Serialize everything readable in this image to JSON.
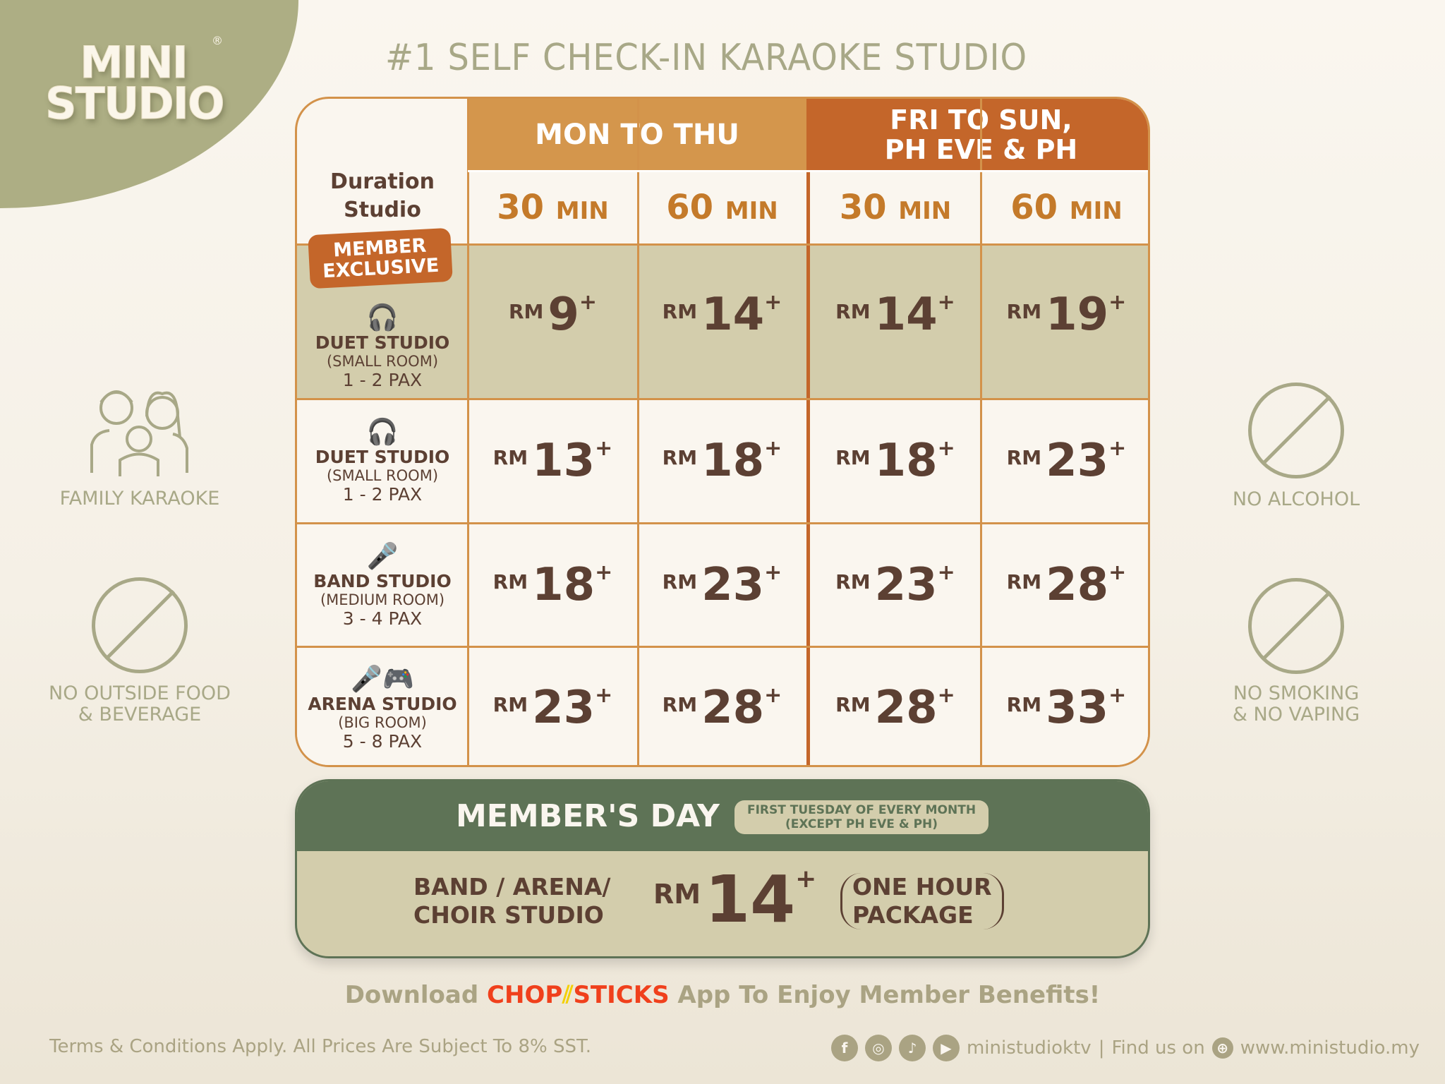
{
  "logo": {
    "text_line1": "MINI",
    "text_line2": "STUDIO",
    "registered": "®"
  },
  "title": "#1 SELF CHECK-IN KARAOKE STUDIO",
  "table": {
    "corner_label_1": "Duration",
    "corner_label_2": "Studio",
    "weekday_header": "MON TO THU",
    "weekend_header_1": "FRI TO SUN,",
    "weekend_header_2": "PH EVE & PH",
    "durations": [
      {
        "num": "30",
        "unit": "MIN"
      },
      {
        "num": "60",
        "unit": "MIN"
      },
      {
        "num": "30",
        "unit": "MIN"
      },
      {
        "num": "60",
        "unit": "MIN"
      }
    ],
    "currency": "RM",
    "plus": "+",
    "member_badge_1": "MEMBER",
    "member_badge_2": "EXCLUSIVE",
    "rows": [
      {
        "name": "DUET STUDIO",
        "sub": "(SMALL ROOM)",
        "pax": "1 - 2 PAX",
        "icon": "headphones-icon",
        "prices": [
          "9",
          "14",
          "14",
          "19"
        ],
        "member": true
      },
      {
        "name": "DUET STUDIO",
        "sub": "(SMALL ROOM)",
        "pax": "1 - 2 PAX",
        "icon": "headphones-icon",
        "prices": [
          "13",
          "18",
          "18",
          "23"
        ]
      },
      {
        "name": "BAND STUDIO",
        "sub": "(MEDIUM ROOM)",
        "pax": "3 - 4 PAX",
        "icon": "microphone-icon",
        "prices": [
          "18",
          "23",
          "23",
          "28"
        ]
      },
      {
        "name": "ARENA STUDIO",
        "sub": "(BIG ROOM)",
        "pax": "5 - 8 PAX",
        "icon": "microphone-gamepad-icon",
        "prices": [
          "23",
          "28",
          "28",
          "33"
        ]
      }
    ]
  },
  "side": {
    "family": "FAMILY KARAOKE",
    "no_food_1": "NO OUTSIDE FOOD",
    "no_food_2": "& BEVERAGE",
    "no_alcohol": "NO ALCOHOL",
    "no_smoking_1": "NO SMOKING",
    "no_smoking_2": "& NO VAPING"
  },
  "members_day": {
    "title": "MEMBER'S DAY",
    "note_1": "FIRST TUESDAY OF EVERY MONTH",
    "note_2": "(EXCEPT PH EVE & PH)",
    "studios_1": "BAND / ARENA/",
    "studios_2": "CHOIR STUDIO",
    "currency": "RM",
    "price": "14",
    "plus": "+",
    "package_1": "ONE HOUR",
    "package_2": "PACKAGE"
  },
  "download": {
    "pre": "Download",
    "app_1": "CHOP",
    "app_2": "STICKS",
    "post": "App To Enjoy Member Benefits!"
  },
  "footer": {
    "terms": "Terms & Conditions Apply. All Prices Are Subject To 8% SST.",
    "handle": "ministudioktv",
    "find": "Find us on",
    "website": "www.ministudio.my"
  },
  "colors": {
    "olive": "#adae84",
    "weekday": "#d4964c",
    "weekend": "#c4662a",
    "member_row": "#d3cdac",
    "green": "#5e7356",
    "text": "#5c4033",
    "chopsticks": "#f0401c"
  }
}
